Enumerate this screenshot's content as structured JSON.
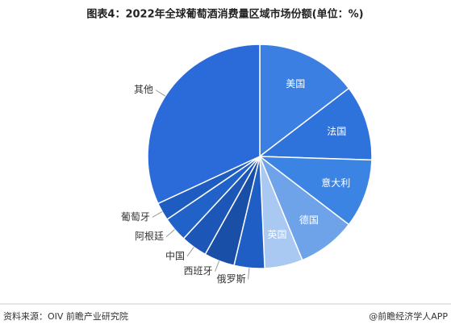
{
  "chart_data": {
    "type": "pie",
    "title": "图表4：2022年全球葡萄酒消费量区域市场份额(单位：%)",
    "categories": [
      "美国",
      "法国",
      "意大利",
      "德国",
      "英国",
      "俄罗斯",
      "西班牙",
      "中国",
      "阿根廷",
      "葡萄牙",
      "其他"
    ],
    "values": [
      14.6,
      10.9,
      9.9,
      8.4,
      5.5,
      4.4,
      4.4,
      3.8,
      3.6,
      2.6,
      31.9
    ],
    "colors": [
      "#3b7fe2",
      "#2e72dc",
      "#3c84e3",
      "#6ea3ea",
      "#a9c9f2",
      "#1f5ec4",
      "#1a4fa8",
      "#1c57b8",
      "#2162c9",
      "#1f5cc2",
      "#2b6bd9"
    ],
    "source": "资料来源：OIV 前瞻产业研究院",
    "credit": "@前瞻经济学人APP"
  }
}
